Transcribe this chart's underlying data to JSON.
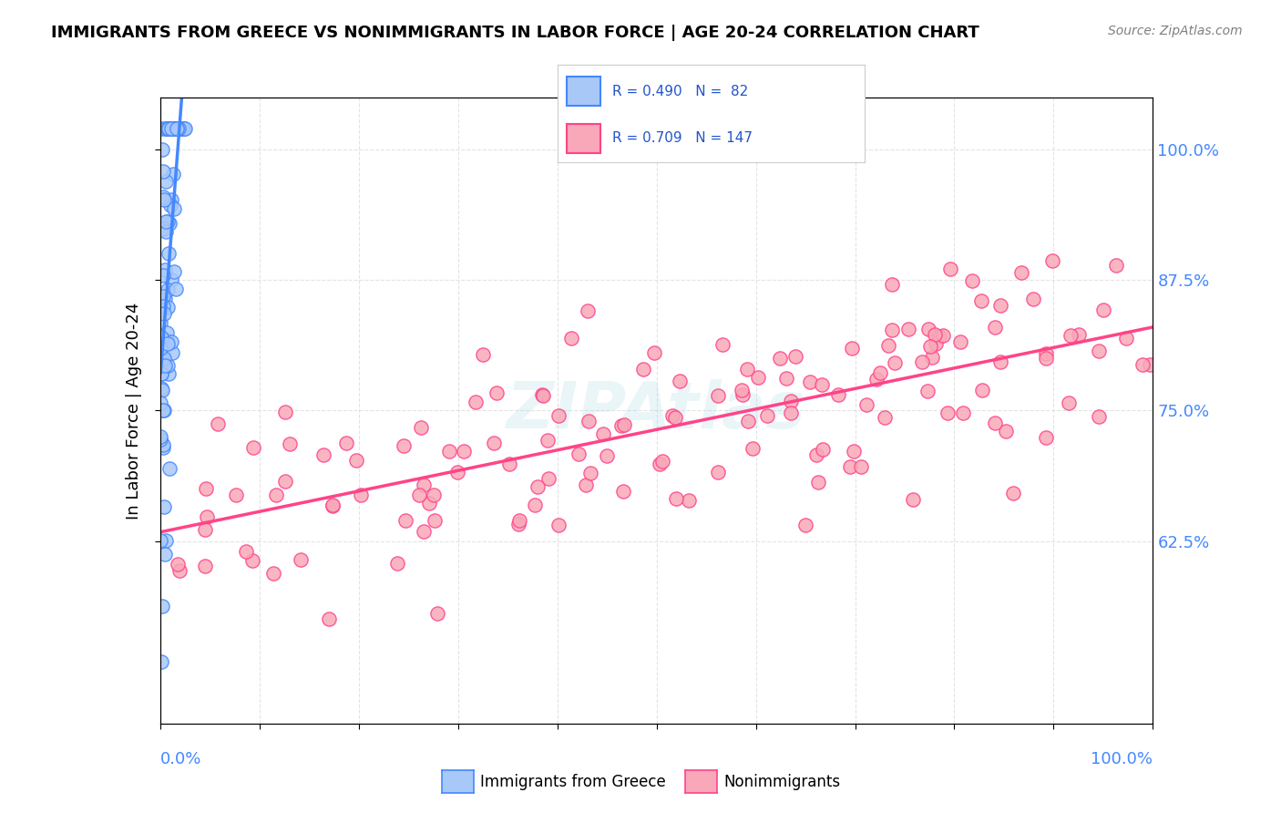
{
  "title": "IMMIGRANTS FROM GREECE VS NONIMMIGRANTS IN LABOR FORCE | AGE 20-24 CORRELATION CHART",
  "source": "Source: ZipAtlas.com",
  "ylabel": "In Labor Force | Age 20-24",
  "legend_entries": [
    {
      "label": "Immigrants from Greece",
      "R": "0.490",
      "N": "82",
      "color": "#a8c8f8",
      "line_color": "#4488ff"
    },
    {
      "label": "Nonimmigrants",
      "R": "0.709",
      "N": "147",
      "color": "#f8a8b8",
      "line_color": "#ff4488"
    }
  ],
  "xlim": [
    0.0,
    1.0
  ],
  "ylim": [
    0.45,
    1.05
  ],
  "yticks": [
    0.625,
    0.75,
    0.875,
    1.0
  ],
  "ytick_labels": [
    "62.5%",
    "75.0%",
    "87.5%",
    "100.0%"
  ],
  "watermark": "ZIPAtlas",
  "background_color": "#ffffff",
  "grid_color": "#dddddd",
  "blue_seed": 10,
  "pink_seed": 20
}
